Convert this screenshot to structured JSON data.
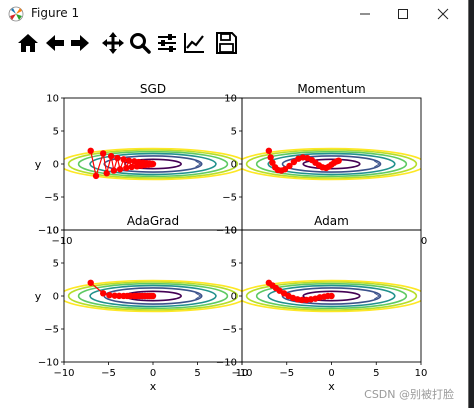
{
  "window": {
    "title": "Figure 1",
    "controls": {
      "minimize": "minimize",
      "maximize": "maximize",
      "close": "close"
    }
  },
  "toolbar": {
    "tools": [
      {
        "id": "home",
        "icon": "home-icon"
      },
      {
        "id": "back",
        "icon": "back-arrow-icon"
      },
      {
        "id": "forward",
        "icon": "forward-arrow-icon"
      },
      {
        "id": "pan",
        "icon": "move-icon"
      },
      {
        "id": "zoom",
        "icon": "zoom-icon"
      },
      {
        "id": "subplots",
        "icon": "configure-subplots-icon"
      },
      {
        "id": "axes",
        "icon": "edit-axes-icon"
      },
      {
        "id": "save",
        "icon": "save-icon"
      }
    ]
  },
  "watermark": "CSDN @别被打脸",
  "colors": {
    "marker": "#ff0000",
    "contours": [
      "#440154",
      "#3b528b",
      "#21918c",
      "#5ec962",
      "#b5de2b",
      "#fde725"
    ]
  },
  "chart_data": [
    {
      "type": "scatter",
      "title": "SGD",
      "xlabel": "",
      "ylabel": "y",
      "xlim": [
        -10,
        10
      ],
      "ylim": [
        -10,
        10
      ],
      "xticks": [],
      "yticks": [
        -10,
        -5,
        0,
        5,
        10
      ],
      "series": [
        {
          "x": [
            -7.0,
            -6.4,
            -5.6,
            -5.2,
            -4.7,
            -4.4,
            -4.0,
            -3.7,
            -3.3,
            -3.0,
            -2.7,
            -2.4,
            -2.1,
            -1.8,
            -1.6,
            -1.3,
            -1.1,
            -0.9,
            -0.7,
            -0.5,
            -0.4,
            -0.2,
            -0.1,
            0.0
          ],
          "y": [
            2.0,
            -1.8,
            1.6,
            -1.4,
            1.2,
            -1.0,
            0.9,
            -0.8,
            0.7,
            -0.6,
            0.5,
            -0.45,
            0.4,
            -0.35,
            0.3,
            -0.25,
            0.2,
            -0.15,
            0.12,
            -0.1,
            0.08,
            -0.05,
            0.03,
            0.0
          ]
        }
      ]
    },
    {
      "type": "scatter",
      "title": "Momentum",
      "xlabel": "",
      "ylabel": "",
      "xlim": [
        -10,
        10
      ],
      "ylim": [
        -10,
        10
      ],
      "xticks": [],
      "yticks": [
        -10,
        -5,
        0,
        5,
        10
      ],
      "series": [
        {
          "x": [
            -7.0,
            -6.8,
            -6.6,
            -6.3,
            -6.0,
            -5.6,
            -5.2,
            -4.7,
            -4.2,
            -3.7,
            -3.2,
            -2.7,
            -2.2,
            -1.8,
            -1.4,
            -1.0,
            -0.6,
            -0.3,
            0.0,
            0.3,
            0.6,
            0.8
          ],
          "y": [
            2.0,
            1.0,
            0.2,
            -0.5,
            -0.9,
            -1.0,
            -0.8,
            -0.3,
            0.3,
            0.8,
            1.0,
            0.9,
            0.6,
            0.2,
            -0.2,
            -0.5,
            -0.6,
            -0.4,
            -0.1,
            0.2,
            0.4,
            0.5
          ]
        }
      ]
    },
    {
      "type": "scatter",
      "title": "AdaGrad",
      "xlabel": "x",
      "ylabel": "y",
      "xlim": [
        -10,
        10
      ],
      "ylim": [
        -10,
        10
      ],
      "xticks": [
        -10,
        -5,
        0,
        5,
        10
      ],
      "yticks": [
        -10,
        -5,
        0,
        5,
        10
      ],
      "series": [
        {
          "x": [
            -7.0,
            -5.6,
            -4.9,
            -4.3,
            -3.8,
            -3.3,
            -2.9,
            -2.5,
            -2.1,
            -1.8,
            -1.5,
            -1.2,
            -0.9,
            -0.6,
            -0.4,
            -0.2,
            0.0
          ],
          "y": [
            2.0,
            0.4,
            0.12,
            0.05,
            0.02,
            0.01,
            0.01,
            0.0,
            0.0,
            0.0,
            0.0,
            0.0,
            0.0,
            0.0,
            0.0,
            0.0,
            0.0
          ]
        }
      ]
    },
    {
      "type": "scatter",
      "title": "Adam",
      "xlabel": "x",
      "ylabel": "",
      "xlim": [
        -10,
        10
      ],
      "ylim": [
        -10,
        10
      ],
      "xticks": [
        -10,
        -5,
        0,
        5,
        10
      ],
      "yticks": [
        -10,
        -5,
        0,
        5,
        10
      ],
      "series": [
        {
          "x": [
            -7.0,
            -6.6,
            -6.2,
            -5.8,
            -5.3,
            -4.8,
            -4.3,
            -3.8,
            -3.3,
            -2.8,
            -2.3,
            -1.8,
            -1.3,
            -0.8,
            -0.4,
            0.0
          ],
          "y": [
            2.0,
            1.6,
            1.2,
            0.8,
            0.4,
            0.0,
            -0.3,
            -0.5,
            -0.6,
            -0.6,
            -0.5,
            -0.4,
            -0.2,
            -0.1,
            0.0,
            0.0
          ]
        }
      ]
    }
  ],
  "outer_ticks": {
    "left_bottom": "−10",
    "right_bottom": "0"
  }
}
